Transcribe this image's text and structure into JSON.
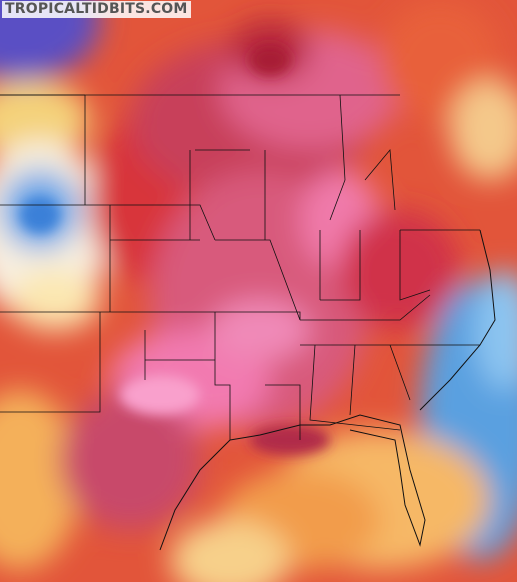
{
  "watermark": "TROPICALTIDBITS.COM"
}
